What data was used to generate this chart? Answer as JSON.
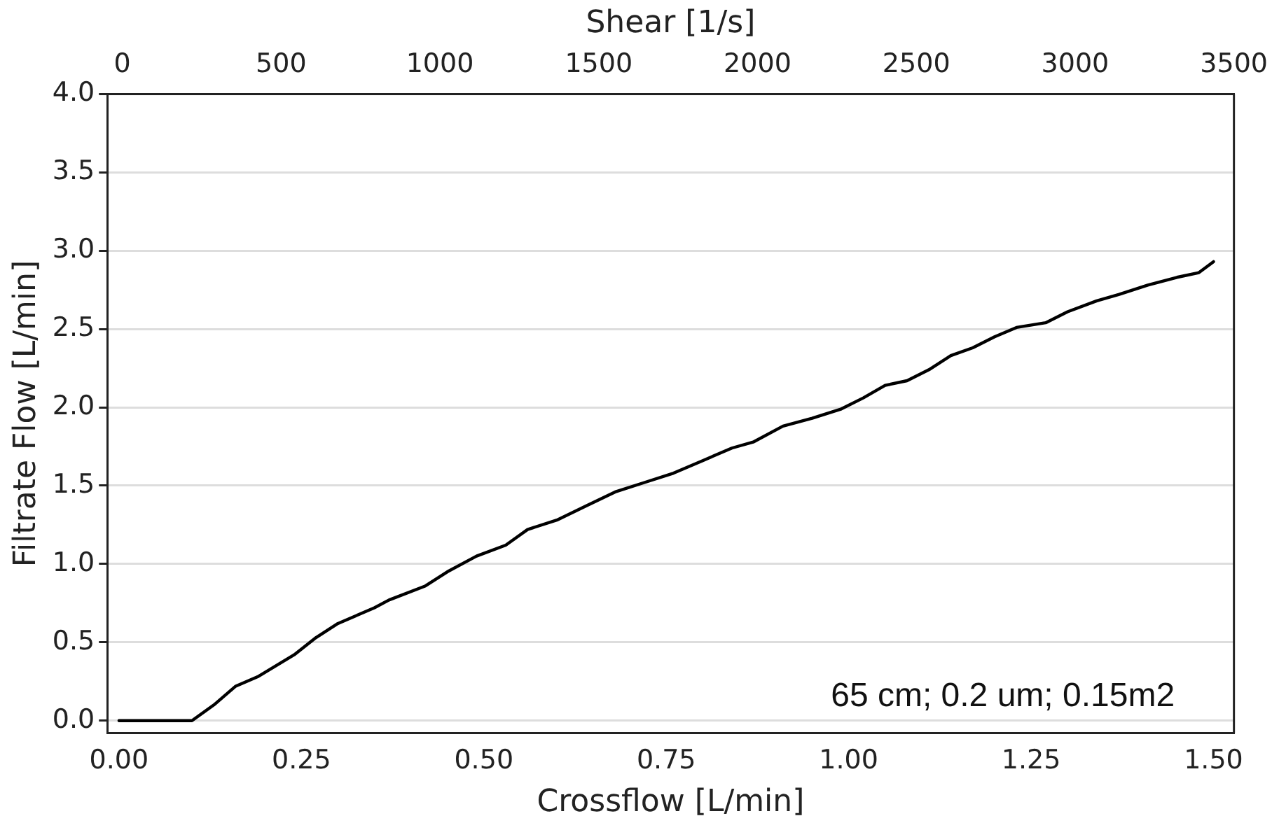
{
  "chart_data": {
    "type": "line",
    "xlabel": "Crossflow [L/min]",
    "ylabel": "Filtrate Flow [L/min]",
    "x2label": "Shear [1/s]",
    "xlim": [
      -0.016,
      1.528
    ],
    "xticks": [
      {
        "value": 0,
        "label": "0.00"
      },
      {
        "value": 0.25,
        "label": "0.25"
      },
      {
        "value": 0.5,
        "label": "0.50"
      },
      {
        "value": 0.75,
        "label": "0.75"
      },
      {
        "value": 1,
        "label": "1.00"
      },
      {
        "value": 1.25,
        "label": "1.25"
      },
      {
        "value": 1.5,
        "label": "1.50"
      }
    ],
    "x2lim": [
      -47,
      3500
    ],
    "x2ticks": [
      0,
      500,
      1000,
      1500,
      2000,
      2500,
      3000,
      3500
    ],
    "ylim": [
      -0.08,
      4.0
    ],
    "yticks": [
      {
        "value": 0,
        "label": "0.0"
      },
      {
        "value": 0.5,
        "label": "0.5"
      },
      {
        "value": 1,
        "label": "1.0"
      },
      {
        "value": 1.5,
        "label": "1.5"
      },
      {
        "value": 2,
        "label": "2.0"
      },
      {
        "value": 2.5,
        "label": "2.5"
      },
      {
        "value": 3,
        "label": "3.0"
      },
      {
        "value": 3.5,
        "label": "3.5"
      },
      {
        "value": 4,
        "label": "4.0"
      }
    ],
    "grid": "y",
    "legend": false,
    "marker": "none",
    "line_style": "solid",
    "annotations": [
      "65 cm; 0.2 um; 0.15m2"
    ],
    "series": [
      {
        "color": "#000000",
        "x": [
          0,
          0.1,
          0.13,
          0.16,
          0.19,
          0.24,
          0.27,
          0.3,
          0.35,
          0.37,
          0.42,
          0.45,
          0.49,
          0.53,
          0.56,
          0.6,
          0.64,
          0.68,
          0.72,
          0.76,
          0.8,
          0.84,
          0.87,
          0.91,
          0.95,
          0.99,
          1.02,
          1.05,
          1.08,
          1.11,
          1.14,
          1.17,
          1.2,
          1.23,
          1.27,
          1.3,
          1.34,
          1.37,
          1.41,
          1.45,
          1.48,
          1.5
        ],
        "values": [
          0,
          0,
          0.1,
          0.22,
          0.28,
          0.42,
          0.53,
          0.62,
          0.72,
          0.77,
          0.86,
          0.95,
          1.05,
          1.12,
          1.22,
          1.28,
          1.37,
          1.46,
          1.52,
          1.58,
          1.66,
          1.74,
          1.78,
          1.88,
          1.93,
          1.99,
          2.06,
          2.14,
          2.17,
          2.24,
          2.33,
          2.38,
          2.45,
          2.51,
          2.54,
          2.61,
          2.68,
          2.72,
          2.78,
          2.83,
          2.86,
          2.93
        ]
      }
    ]
  }
}
